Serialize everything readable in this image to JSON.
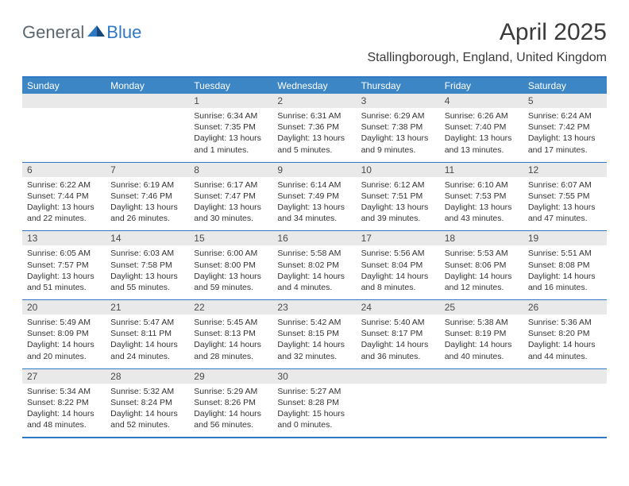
{
  "brand": {
    "part1": "General",
    "part2": "Blue"
  },
  "title": "April 2025",
  "location": "Stallingborough, England, United Kingdom",
  "colors": {
    "header_bg": "#3d86c6",
    "header_text": "#ffffff",
    "border": "#2f78c3",
    "daynum_bg": "#e9e9e9",
    "body_text": "#333333",
    "logo_gray": "#5b6670",
    "logo_blue": "#2f78c3"
  },
  "day_names": [
    "Sunday",
    "Monday",
    "Tuesday",
    "Wednesday",
    "Thursday",
    "Friday",
    "Saturday"
  ],
  "weeks": [
    [
      {
        "num": "",
        "lines": [
          "",
          "",
          "",
          ""
        ]
      },
      {
        "num": "",
        "lines": [
          "",
          "",
          "",
          ""
        ]
      },
      {
        "num": "1",
        "lines": [
          "Sunrise: 6:34 AM",
          "Sunset: 7:35 PM",
          "Daylight: 13 hours",
          "and 1 minutes."
        ]
      },
      {
        "num": "2",
        "lines": [
          "Sunrise: 6:31 AM",
          "Sunset: 7:36 PM",
          "Daylight: 13 hours",
          "and 5 minutes."
        ]
      },
      {
        "num": "3",
        "lines": [
          "Sunrise: 6:29 AM",
          "Sunset: 7:38 PM",
          "Daylight: 13 hours",
          "and 9 minutes."
        ]
      },
      {
        "num": "4",
        "lines": [
          "Sunrise: 6:26 AM",
          "Sunset: 7:40 PM",
          "Daylight: 13 hours",
          "and 13 minutes."
        ]
      },
      {
        "num": "5",
        "lines": [
          "Sunrise: 6:24 AM",
          "Sunset: 7:42 PM",
          "Daylight: 13 hours",
          "and 17 minutes."
        ]
      }
    ],
    [
      {
        "num": "6",
        "lines": [
          "Sunrise: 6:22 AM",
          "Sunset: 7:44 PM",
          "Daylight: 13 hours",
          "and 22 minutes."
        ]
      },
      {
        "num": "7",
        "lines": [
          "Sunrise: 6:19 AM",
          "Sunset: 7:46 PM",
          "Daylight: 13 hours",
          "and 26 minutes."
        ]
      },
      {
        "num": "8",
        "lines": [
          "Sunrise: 6:17 AM",
          "Sunset: 7:47 PM",
          "Daylight: 13 hours",
          "and 30 minutes."
        ]
      },
      {
        "num": "9",
        "lines": [
          "Sunrise: 6:14 AM",
          "Sunset: 7:49 PM",
          "Daylight: 13 hours",
          "and 34 minutes."
        ]
      },
      {
        "num": "10",
        "lines": [
          "Sunrise: 6:12 AM",
          "Sunset: 7:51 PM",
          "Daylight: 13 hours",
          "and 39 minutes."
        ]
      },
      {
        "num": "11",
        "lines": [
          "Sunrise: 6:10 AM",
          "Sunset: 7:53 PM",
          "Daylight: 13 hours",
          "and 43 minutes."
        ]
      },
      {
        "num": "12",
        "lines": [
          "Sunrise: 6:07 AM",
          "Sunset: 7:55 PM",
          "Daylight: 13 hours",
          "and 47 minutes."
        ]
      }
    ],
    [
      {
        "num": "13",
        "lines": [
          "Sunrise: 6:05 AM",
          "Sunset: 7:57 PM",
          "Daylight: 13 hours",
          "and 51 minutes."
        ]
      },
      {
        "num": "14",
        "lines": [
          "Sunrise: 6:03 AM",
          "Sunset: 7:58 PM",
          "Daylight: 13 hours",
          "and 55 minutes."
        ]
      },
      {
        "num": "15",
        "lines": [
          "Sunrise: 6:00 AM",
          "Sunset: 8:00 PM",
          "Daylight: 13 hours",
          "and 59 minutes."
        ]
      },
      {
        "num": "16",
        "lines": [
          "Sunrise: 5:58 AM",
          "Sunset: 8:02 PM",
          "Daylight: 14 hours",
          "and 4 minutes."
        ]
      },
      {
        "num": "17",
        "lines": [
          "Sunrise: 5:56 AM",
          "Sunset: 8:04 PM",
          "Daylight: 14 hours",
          "and 8 minutes."
        ]
      },
      {
        "num": "18",
        "lines": [
          "Sunrise: 5:53 AM",
          "Sunset: 8:06 PM",
          "Daylight: 14 hours",
          "and 12 minutes."
        ]
      },
      {
        "num": "19",
        "lines": [
          "Sunrise: 5:51 AM",
          "Sunset: 8:08 PM",
          "Daylight: 14 hours",
          "and 16 minutes."
        ]
      }
    ],
    [
      {
        "num": "20",
        "lines": [
          "Sunrise: 5:49 AM",
          "Sunset: 8:09 PM",
          "Daylight: 14 hours",
          "and 20 minutes."
        ]
      },
      {
        "num": "21",
        "lines": [
          "Sunrise: 5:47 AM",
          "Sunset: 8:11 PM",
          "Daylight: 14 hours",
          "and 24 minutes."
        ]
      },
      {
        "num": "22",
        "lines": [
          "Sunrise: 5:45 AM",
          "Sunset: 8:13 PM",
          "Daylight: 14 hours",
          "and 28 minutes."
        ]
      },
      {
        "num": "23",
        "lines": [
          "Sunrise: 5:42 AM",
          "Sunset: 8:15 PM",
          "Daylight: 14 hours",
          "and 32 minutes."
        ]
      },
      {
        "num": "24",
        "lines": [
          "Sunrise: 5:40 AM",
          "Sunset: 8:17 PM",
          "Daylight: 14 hours",
          "and 36 minutes."
        ]
      },
      {
        "num": "25",
        "lines": [
          "Sunrise: 5:38 AM",
          "Sunset: 8:19 PM",
          "Daylight: 14 hours",
          "and 40 minutes."
        ]
      },
      {
        "num": "26",
        "lines": [
          "Sunrise: 5:36 AM",
          "Sunset: 8:20 PM",
          "Daylight: 14 hours",
          "and 44 minutes."
        ]
      }
    ],
    [
      {
        "num": "27",
        "lines": [
          "Sunrise: 5:34 AM",
          "Sunset: 8:22 PM",
          "Daylight: 14 hours",
          "and 48 minutes."
        ]
      },
      {
        "num": "28",
        "lines": [
          "Sunrise: 5:32 AM",
          "Sunset: 8:24 PM",
          "Daylight: 14 hours",
          "and 52 minutes."
        ]
      },
      {
        "num": "29",
        "lines": [
          "Sunrise: 5:29 AM",
          "Sunset: 8:26 PM",
          "Daylight: 14 hours",
          "and 56 minutes."
        ]
      },
      {
        "num": "30",
        "lines": [
          "Sunrise: 5:27 AM",
          "Sunset: 8:28 PM",
          "Daylight: 15 hours",
          "and 0 minutes."
        ]
      },
      {
        "num": "",
        "lines": [
          "",
          "",
          "",
          ""
        ]
      },
      {
        "num": "",
        "lines": [
          "",
          "",
          "",
          ""
        ]
      },
      {
        "num": "",
        "lines": [
          "",
          "",
          "",
          ""
        ]
      }
    ]
  ]
}
